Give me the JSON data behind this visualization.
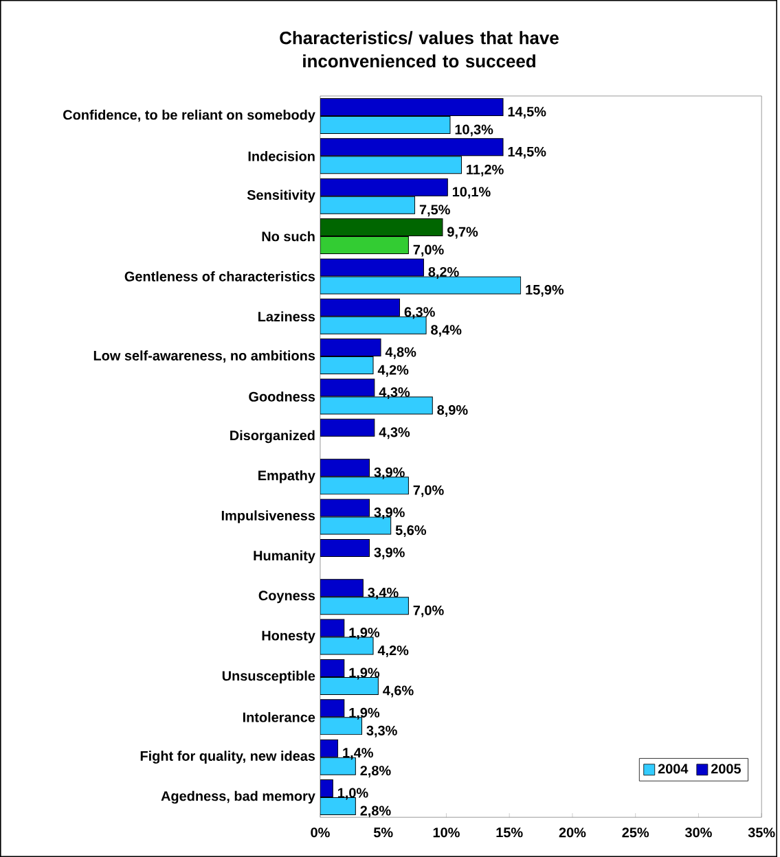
{
  "chart_data": {
    "type": "bar",
    "orientation": "horizontal",
    "title": "Characteristics/ values that have inconvenienced to succeed",
    "categories": [
      "Confidence, to be reliant on somebody",
      "Indecision",
      "Sensitivity",
      "No such",
      "Gentleness of characteristics",
      "Laziness",
      "Low self-awareness, no ambitions",
      "Goodness",
      "Disorganized",
      "Empathy",
      "Impulsiveness",
      "Humanity",
      "Coyness",
      "Honesty",
      "Unsusceptible",
      "Intolerance",
      "Fight for quality, new ideas",
      "Agedness, bad memory"
    ],
    "series": [
      {
        "name": "2004",
        "color": "#33ccff",
        "colors": [
          "#33ccff",
          "#33ccff",
          "#33ccff",
          "#33cc33",
          "#33ccff",
          "#33ccff",
          "#33ccff",
          "#33ccff",
          "#33ccff",
          "#33ccff",
          "#33ccff",
          "#33ccff",
          "#33ccff",
          "#33ccff",
          "#33ccff",
          "#33ccff",
          "#33ccff",
          "#33ccff"
        ],
        "values": [
          10.3,
          11.2,
          7.5,
          7.0,
          15.9,
          8.4,
          4.2,
          8.9,
          null,
          7.0,
          5.6,
          null,
          7.0,
          4.2,
          4.6,
          3.3,
          2.8,
          2.8
        ],
        "value_labels": [
          "10,3%",
          "11,2%",
          "7,5%",
          "7,0%",
          "15,9%",
          "8,4%",
          "4,2%",
          "8,9%",
          null,
          "7,0%",
          "5,6%",
          null,
          "7,0%",
          "4,2%",
          "4,6%",
          "3,3%",
          "2,8%",
          "2,8%"
        ]
      },
      {
        "name": "2005",
        "color": "#0000cc",
        "colors": [
          "#0000cc",
          "#0000cc",
          "#0000cc",
          "#006600",
          "#0000cc",
          "#0000cc",
          "#0000cc",
          "#0000cc",
          "#0000cc",
          "#0000cc",
          "#0000cc",
          "#0000cc",
          "#0000cc",
          "#0000cc",
          "#0000cc",
          "#0000cc",
          "#0000cc",
          "#0000cc"
        ],
        "values": [
          14.5,
          14.5,
          10.1,
          9.7,
          8.2,
          6.3,
          4.8,
          4.3,
          4.3,
          3.9,
          3.9,
          3.9,
          3.4,
          1.9,
          1.9,
          1.9,
          1.4,
          1.0
        ],
        "value_labels": [
          "14,5%",
          "14,5%",
          "10,1%",
          "9,7%",
          "8,2%",
          "6,3%",
          "4,8%",
          "4,3%",
          "4,3%",
          "3,9%",
          "3,9%",
          "3,9%",
          "3,4%",
          "1,9%",
          "1,9%",
          "1,9%",
          "1,4%",
          "1,0%"
        ]
      }
    ],
    "xlim": [
      0,
      35
    ],
    "xticks": [
      {
        "value": 0,
        "label": "0%"
      },
      {
        "value": 5,
        "label": "5%"
      },
      {
        "value": 10,
        "label": "10%"
      },
      {
        "value": 15,
        "label": "15%"
      },
      {
        "value": 20,
        "label": "20%"
      },
      {
        "value": 25,
        "label": "25%"
      },
      {
        "value": 30,
        "label": "30%"
      },
      {
        "value": 35,
        "label": "35%"
      }
    ],
    "legend": "bottom right"
  }
}
